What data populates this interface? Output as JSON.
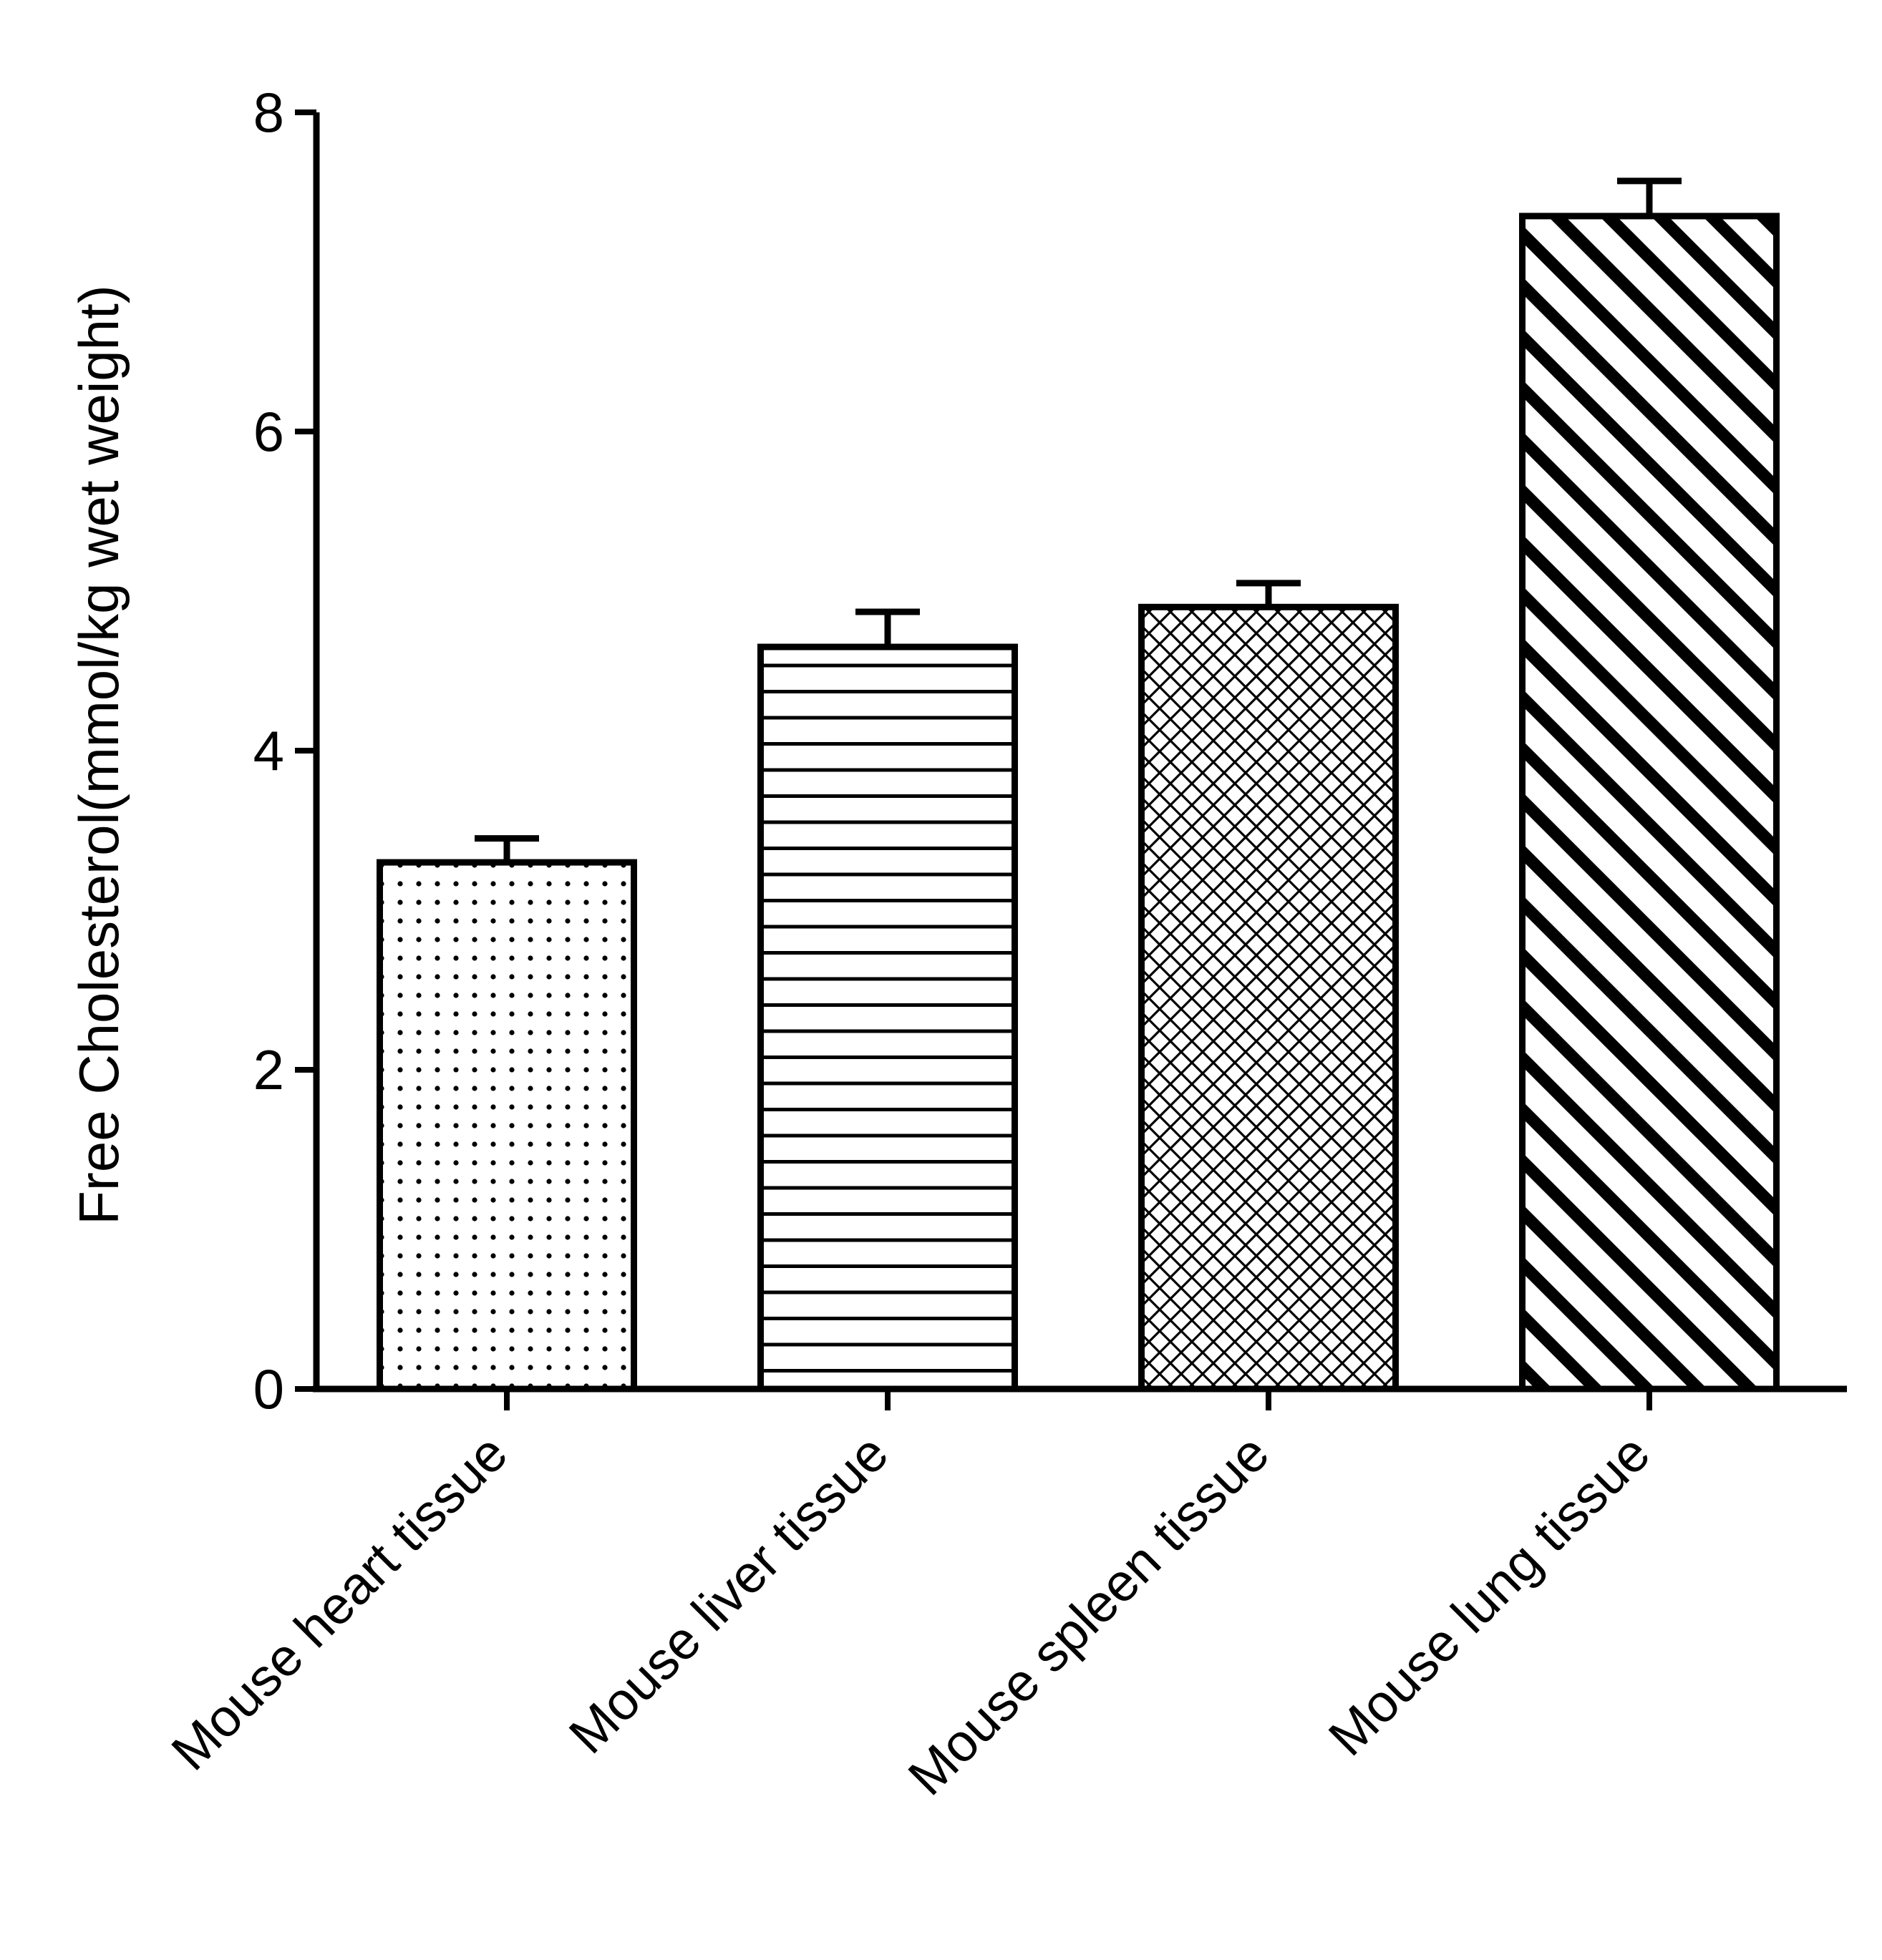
{
  "chart_data": {
    "type": "bar",
    "title": "",
    "xlabel": "",
    "ylabel": "Free Cholesterol(mmol/kg wet weight)",
    "ylim": [
      0,
      8
    ],
    "yticks": [
      0,
      2,
      4,
      6,
      8
    ],
    "grid": false,
    "legend": "none",
    "categories": [
      "Mouse heart tissue",
      "Mouse liver tissue",
      "Mouse spleen tissue",
      "Mouse lung tissue"
    ],
    "values": [
      3.3,
      4.65,
      4.9,
      7.35
    ],
    "errors": [
      0.15,
      0.22,
      0.15,
      0.22
    ],
    "patterns": [
      "dots",
      "horizontal-lines",
      "crosshatch",
      "diagonal-stripes"
    ]
  },
  "colors": {
    "ink": "#000000",
    "background": "#ffffff"
  }
}
